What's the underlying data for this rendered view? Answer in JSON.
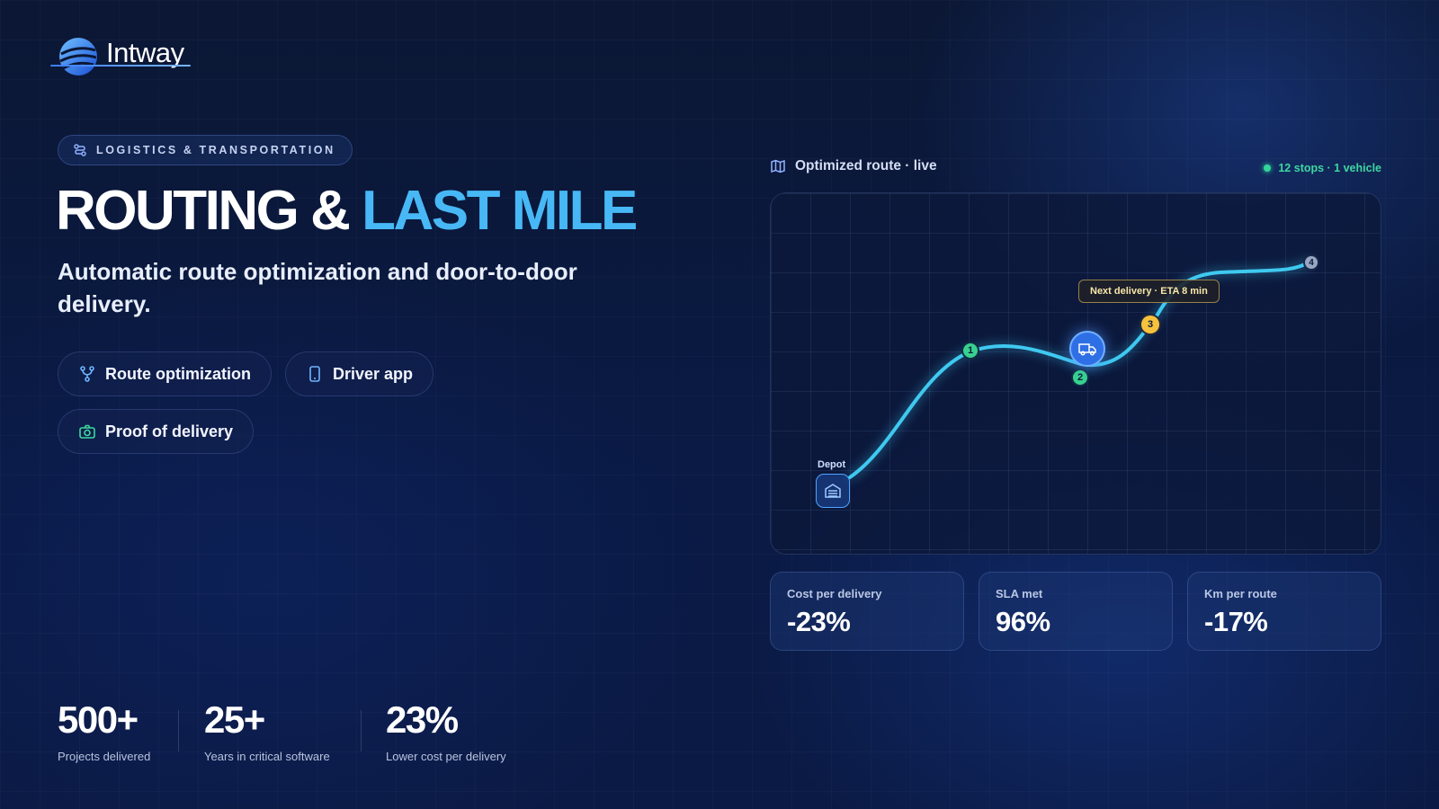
{
  "brand": {
    "name": "Intway"
  },
  "tag": {
    "label": "LOGISTICS & TRANSPORTATION",
    "icon": "route-icon"
  },
  "hero": {
    "title_main": "ROUTING & ",
    "title_accent": "LAST MILE",
    "subtitle": "Automatic route optimization and door-to-door delivery."
  },
  "features": [
    {
      "label": "Route optimization",
      "icon": "route-fork-icon"
    },
    {
      "label": "Driver app",
      "icon": "smartphone-icon"
    },
    {
      "label": "Proof of delivery",
      "icon": "camera-icon"
    }
  ],
  "stats": [
    {
      "value": "500+",
      "label": "Projects delivered"
    },
    {
      "value": "25+",
      "label": "Years in critical software"
    },
    {
      "value": "23%",
      "label": "Lower cost per delivery"
    }
  ],
  "map": {
    "title": "Optimized route · live",
    "meta": "12 stops · 1 vehicle",
    "depot_label": "Depot",
    "eta_label": "Next delivery · ETA 8 min",
    "stops": [
      "1",
      "2",
      "3",
      "4"
    ]
  },
  "metrics": [
    {
      "label": "Cost per delivery",
      "value": "-23%"
    },
    {
      "label": "SLA met",
      "value": "96%"
    },
    {
      "label": "Km per route",
      "value": "-17%"
    }
  ],
  "colors": {
    "accent": "#47b8f5",
    "route": "#3fc9f0",
    "live": "#33d69a",
    "stop_done": "#38d18f",
    "stop_next": "#f6c23e",
    "stop_pending": "#9aa7c4"
  }
}
